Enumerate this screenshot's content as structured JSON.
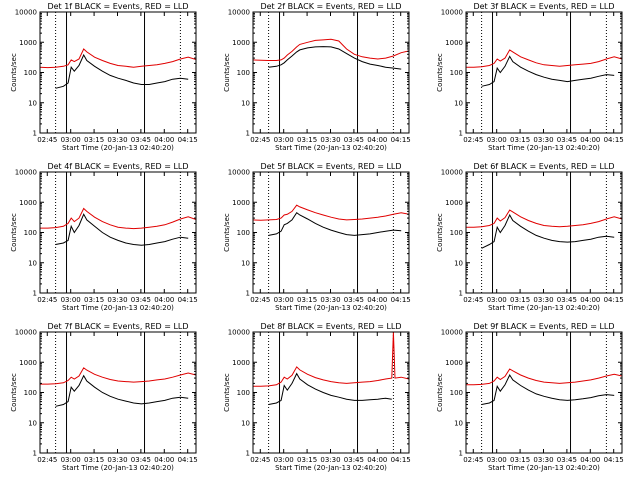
{
  "colors": {
    "events": "#000000",
    "lld": "#e00000",
    "axis": "#000000",
    "background": "#ffffff"
  },
  "shared": {
    "ylabel": "Counts/sec",
    "xlabel": "Start Time (20-Jan-13 02:40:20)",
    "title_suffix": "BLACK = Events, RED = LLD",
    "x_ticks": [
      "02:45",
      "03:00",
      "03:15",
      "03:30",
      "03:45",
      "04:00",
      "04:15"
    ],
    "y_ticks": [
      "1",
      "10",
      "100",
      "1000",
      "10000"
    ],
    "x_range_min": [
      0,
      100
    ],
    "y_range_log": [
      1,
      10000
    ],
    "solid_markers_min": [
      17,
      67
    ],
    "dotted_markers_min": [
      10,
      90,
      102
    ]
  },
  "chart_data": [
    {
      "type": "line",
      "title": "Det 1f",
      "ylabel": "Counts/sec",
      "xlabel": "Start Time (20-Jan-13 02:40:20)",
      "x": [
        0,
        5,
        10,
        15,
        18,
        20,
        22,
        25,
        28,
        30,
        35,
        40,
        45,
        50,
        55,
        60,
        65,
        70,
        75,
        80,
        85,
        90,
        95,
        100,
        105
      ],
      "series": [
        {
          "name": "LLD",
          "values": [
            150,
            145,
            150,
            160,
            180,
            260,
            230,
            280,
            600,
            480,
            320,
            250,
            200,
            170,
            160,
            150,
            160,
            170,
            180,
            200,
            230,
            280,
            320,
            270,
            200
          ]
        },
        {
          "name": "Events",
          "values": [
            null,
            null,
            30,
            35,
            45,
            150,
            110,
            170,
            380,
            250,
            160,
            110,
            80,
            65,
            55,
            45,
            40,
            40,
            45,
            50,
            60,
            65,
            60,
            null,
            null
          ]
        }
      ]
    },
    {
      "type": "line",
      "title": "Det 2f",
      "ylabel": "Counts/sec",
      "xlabel": "Start Time (20-Jan-13 02:40:20)",
      "x": [
        0,
        5,
        10,
        15,
        18,
        20,
        22,
        25,
        28,
        30,
        35,
        40,
        45,
        50,
        55,
        60,
        65,
        70,
        75,
        80,
        85,
        90,
        95,
        100,
        105
      ],
      "series": [
        {
          "name": "LLD",
          "values": [
            260,
            255,
            250,
            250,
            260,
            300,
            380,
            500,
            700,
            850,
            1000,
            1150,
            1200,
            1250,
            1100,
            600,
            400,
            330,
            300,
            280,
            300,
            350,
            450,
            520,
            420
          ]
        },
        {
          "name": "Events",
          "values": [
            null,
            null,
            150,
            160,
            180,
            210,
            260,
            350,
            480,
            560,
            650,
            700,
            720,
            700,
            600,
            420,
            300,
            230,
            190,
            170,
            150,
            140,
            130,
            null,
            null
          ]
        }
      ]
    },
    {
      "type": "line",
      "title": "Det 3f",
      "ylabel": "Counts/sec",
      "xlabel": "Start Time (20-Jan-13 02:40:20)",
      "x": [
        0,
        5,
        10,
        15,
        18,
        20,
        22,
        25,
        28,
        30,
        35,
        40,
        45,
        50,
        55,
        60,
        65,
        70,
        75,
        80,
        85,
        90,
        95,
        100,
        105
      ],
      "series": [
        {
          "name": "LLD",
          "values": [
            150,
            150,
            155,
            170,
            200,
            280,
            240,
            300,
            560,
            480,
            330,
            260,
            210,
            180,
            170,
            160,
            170,
            180,
            190,
            200,
            230,
            280,
            330,
            280,
            200
          ]
        },
        {
          "name": "Events",
          "values": [
            null,
            null,
            35,
            40,
            50,
            140,
            100,
            160,
            340,
            230,
            150,
            110,
            85,
            70,
            60,
            55,
            50,
            55,
            60,
            65,
            75,
            85,
            80,
            null,
            null
          ]
        }
      ]
    },
    {
      "type": "line",
      "title": "Det 4f",
      "ylabel": "Counts/sec",
      "xlabel": "Start Time (20-Jan-13 02:40:20)",
      "x": [
        0,
        5,
        10,
        15,
        18,
        20,
        22,
        25,
        28,
        30,
        35,
        40,
        45,
        50,
        55,
        60,
        65,
        70,
        75,
        80,
        85,
        90,
        95,
        100,
        105
      ],
      "series": [
        {
          "name": "LLD",
          "values": [
            140,
            140,
            145,
            160,
            200,
            300,
            230,
            300,
            620,
            500,
            320,
            230,
            180,
            150,
            140,
            135,
            140,
            150,
            160,
            180,
            220,
            280,
            330,
            270,
            200
          ]
        },
        {
          "name": "Events",
          "values": [
            null,
            null,
            40,
            45,
            55,
            160,
            100,
            170,
            400,
            260,
            160,
            100,
            70,
            55,
            45,
            40,
            38,
            40,
            45,
            50,
            60,
            70,
            65,
            null,
            null
          ]
        }
      ]
    },
    {
      "type": "line",
      "title": "Det 5f",
      "ylabel": "Counts/sec",
      "xlabel": "Start Time (20-Jan-13 02:40:20)",
      "x": [
        0,
        5,
        10,
        15,
        18,
        20,
        22,
        25,
        28,
        30,
        35,
        40,
        45,
        50,
        55,
        60,
        65,
        70,
        75,
        80,
        85,
        90,
        95,
        100,
        105
      ],
      "series": [
        {
          "name": "LLD",
          "values": [
            260,
            255,
            260,
            270,
            300,
            380,
            400,
            500,
            800,
            700,
            560,
            450,
            380,
            320,
            280,
            260,
            270,
            280,
            300,
            320,
            350,
            400,
            450,
            400,
            320
          ]
        },
        {
          "name": "Events",
          "values": [
            null,
            null,
            80,
            90,
            110,
            180,
            200,
            260,
            450,
            380,
            280,
            200,
            150,
            120,
            100,
            85,
            80,
            85,
            90,
            100,
            110,
            120,
            115,
            null,
            null
          ]
        }
      ]
    },
    {
      "type": "line",
      "title": "Det 6f",
      "ylabel": "Counts/sec",
      "xlabel": "Start Time (20-Jan-13 02:40:20)",
      "x": [
        0,
        5,
        10,
        15,
        18,
        20,
        22,
        25,
        28,
        30,
        35,
        40,
        45,
        50,
        55,
        60,
        65,
        70,
        75,
        80,
        85,
        90,
        95,
        100,
        105
      ],
      "series": [
        {
          "name": "LLD",
          "values": [
            150,
            150,
            155,
            170,
            200,
            300,
            240,
            310,
            550,
            480,
            330,
            250,
            200,
            170,
            160,
            155,
            160,
            170,
            180,
            200,
            230,
            280,
            330,
            280,
            200
          ]
        },
        {
          "name": "Events",
          "values": [
            null,
            null,
            30,
            40,
            50,
            150,
            100,
            170,
            380,
            250,
            160,
            110,
            80,
            65,
            55,
            50,
            48,
            50,
            55,
            60,
            70,
            75,
            70,
            null,
            null
          ]
        }
      ]
    },
    {
      "type": "line",
      "title": "Det 7f",
      "ylabel": "Counts/sec",
      "xlabel": "Start Time (20-Jan-13 02:40:20)",
      "x": [
        0,
        5,
        10,
        15,
        18,
        20,
        22,
        25,
        28,
        30,
        35,
        40,
        45,
        50,
        55,
        60,
        65,
        70,
        75,
        80,
        85,
        90,
        95,
        100,
        105
      ],
      "series": [
        {
          "name": "LLD",
          "values": [
            190,
            190,
            195,
            210,
            250,
            320,
            280,
            350,
            650,
            550,
            400,
            320,
            270,
            240,
            230,
            220,
            230,
            240,
            260,
            280,
            320,
            380,
            440,
            380,
            280
          ]
        },
        {
          "name": "Events",
          "values": [
            null,
            null,
            35,
            40,
            50,
            150,
            110,
            170,
            360,
            240,
            150,
            100,
            75,
            60,
            52,
            45,
            42,
            45,
            50,
            55,
            65,
            70,
            65,
            null,
            null
          ]
        }
      ]
    },
    {
      "type": "line",
      "title": "Det 8f",
      "ylabel": "Counts/sec",
      "xlabel": "Start Time (20-Jan-13 02:40:20)",
      "x": [
        0,
        5,
        10,
        15,
        18,
        20,
        22,
        25,
        28,
        30,
        35,
        40,
        45,
        50,
        55,
        60,
        65,
        70,
        75,
        80,
        85,
        89,
        90,
        91,
        95,
        100,
        105
      ],
      "series": [
        {
          "name": "LLD",
          "values": [
            160,
            160,
            165,
            180,
            220,
            320,
            280,
            370,
            700,
            560,
            400,
            310,
            260,
            230,
            210,
            200,
            210,
            220,
            230,
            250,
            280,
            300,
            10000,
            300,
            320,
            280,
            220
          ]
        },
        {
          "name": "Events",
          "values": [
            null,
            null,
            40,
            45,
            55,
            170,
            120,
            200,
            420,
            280,
            180,
            130,
            100,
            80,
            70,
            60,
            55,
            55,
            58,
            60,
            65,
            60,
            null,
            null,
            null,
            null,
            null
          ]
        }
      ]
    },
    {
      "type": "line",
      "title": "Det 9f",
      "ylabel": "Counts/sec",
      "xlabel": "Start Time (20-Jan-13 02:40:20)",
      "x": [
        0,
        5,
        10,
        15,
        18,
        20,
        22,
        25,
        28,
        30,
        35,
        40,
        45,
        50,
        55,
        60,
        65,
        70,
        75,
        80,
        85,
        90,
        95,
        100,
        105
      ],
      "series": [
        {
          "name": "LLD",
          "values": [
            180,
            180,
            185,
            200,
            240,
            320,
            270,
            340,
            600,
            520,
            380,
            300,
            250,
            220,
            210,
            200,
            210,
            220,
            240,
            260,
            300,
            350,
            400,
            350,
            260
          ]
        },
        {
          "name": "Events",
          "values": [
            null,
            null,
            40,
            45,
            55,
            160,
            110,
            180,
            380,
            260,
            170,
            120,
            90,
            75,
            65,
            58,
            55,
            58,
            62,
            68,
            78,
            85,
            80,
            null,
            null
          ]
        }
      ]
    }
  ]
}
